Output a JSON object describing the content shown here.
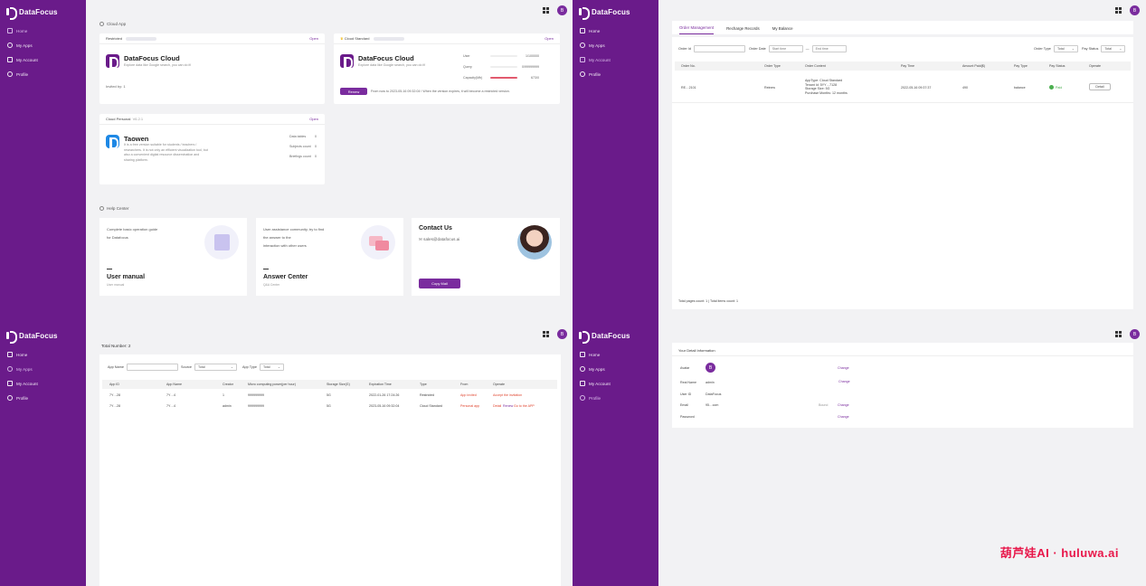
{
  "brand": {
    "name": "DataFocus"
  },
  "nav": [
    "Home",
    "My Apps",
    "My Account",
    "Profile"
  ],
  "avatar_letter": "B",
  "cloud_app": {
    "section_title": "Cloud App",
    "cards": [
      {
        "badge": "Restricted",
        "open": "Open",
        "title": "DataFocus Cloud",
        "desc": "Explore data like Google search, you can do it!",
        "footer": "Invited by: 1"
      },
      {
        "badge": "Cloud Standard",
        "open": "Open",
        "title": "DataFocus Cloud",
        "desc": "Explore data like Google search, you can do it!",
        "stats": [
          {
            "label": "User",
            "value": "1/100000"
          },
          {
            "label": "Query",
            "value": "0/99999999"
          },
          {
            "label": "Capacity(Mb)",
            "value": "673/0"
          }
        ],
        "renew": "Renew",
        "notice": "From now to 2023-05-16 09:32:04 ! When the version expires, it will become a restricted version."
      },
      {
        "badge": "Cloud Personal",
        "version": "V6.2.1",
        "open": "Open",
        "title": "Taowen",
        "desc": "It is a free version suitable for students / teachers / researchers. It is not only an efficient visualization tool, but also a convenient digital resource dissemination and sharing platform.",
        "stats": [
          {
            "label": "Data tables",
            "value": "0"
          },
          {
            "label": "Subjects count",
            "value": "0"
          },
          {
            "label": "Briefings count",
            "value": "0"
          }
        ]
      }
    ]
  },
  "help_center": {
    "section_title": "Help Center",
    "cards": [
      {
        "text": [
          "Complete basic operation guide",
          "for Datafocus"
        ],
        "title": "User manual",
        "sub": "User manual"
      },
      {
        "text": [
          "User assistance community, try to find",
          "the answer to the",
          "interaction with other users"
        ],
        "title": "Answer Center",
        "sub": "Q&A Center"
      },
      {
        "title": "Contact Us",
        "email": "sales@datafocus.ai",
        "button": "Copy Mail"
      }
    ]
  },
  "orders": {
    "tabs": [
      "Order Management",
      "Recharge Records",
      "My Balance"
    ],
    "filters": {
      "order_no": "Order Id",
      "order_date": "Order Date",
      "start": "Start time",
      "end": "End time",
      "order_type": "Order Type",
      "pay_status": "Pay Status",
      "total": "Total"
    },
    "columns": [
      "Order No.",
      "Order Type",
      "Order Content",
      "Pay Time",
      "Amount Paid($)",
      "Pay Type",
      "Pay Status",
      "Operate"
    ],
    "row": {
      "order_no": "RE…2101",
      "type": "Reinew",
      "content": [
        "AppType: Cloud Standard",
        "Tenant Id: 5YY…7128",
        "Storage Size: 5G",
        "Purchase Months: 12 months"
      ],
      "pay_time": "2022-05-16 09:37:37",
      "amount": "490",
      "pay_type": "balance",
      "status": "Paid",
      "operate": "Detail"
    },
    "footer": "Total pages count: 1 | Total items count: 1"
  },
  "apps": {
    "total": "Total Number: 2",
    "filters": {
      "app_name": "App Name",
      "source": "Source",
      "app_type": "App Type",
      "total": "Total"
    },
    "columns": [
      "App ID",
      "App Name",
      "Creator",
      "Micro computing power(per hour)",
      "Storage Size(G)",
      "Expiration Time",
      "Type",
      "From",
      "Operate"
    ],
    "rows": [
      {
        "id": "7Y…28",
        "name": "7Y…4",
        "creator": "1",
        "power": "999999999",
        "storage": "5G",
        "expire": "2022-01-26 17:24:26",
        "type": "Restricted",
        "from": "App invited",
        "operate": [
          "Accept the invitation"
        ]
      },
      {
        "id": "7Y…28",
        "name": "7Y…4",
        "creator": "admin",
        "power": "999999999",
        "storage": "5G",
        "expire": "2023-05-16 09:32:04",
        "type": "Cloud Standard",
        "from": "Personal app",
        "operate": [
          "Detail",
          "Renew",
          "Go to the APP"
        ]
      }
    ]
  },
  "profile": {
    "title": "Your Detail Information",
    "fields": [
      {
        "label": "Avatar",
        "value": "",
        "action": "Change"
      },
      {
        "label": "Real Name",
        "value": "admin",
        "action": "Change"
      },
      {
        "label": "User ID",
        "value": "DataFocus",
        "action": ""
      },
      {
        "label": "Email",
        "value": "95…com",
        "bound": "Bound",
        "action": "Change"
      },
      {
        "label": "Password",
        "value": "",
        "action": "Change"
      }
    ]
  },
  "watermark": "葫芦娃AI · huluwa.ai"
}
